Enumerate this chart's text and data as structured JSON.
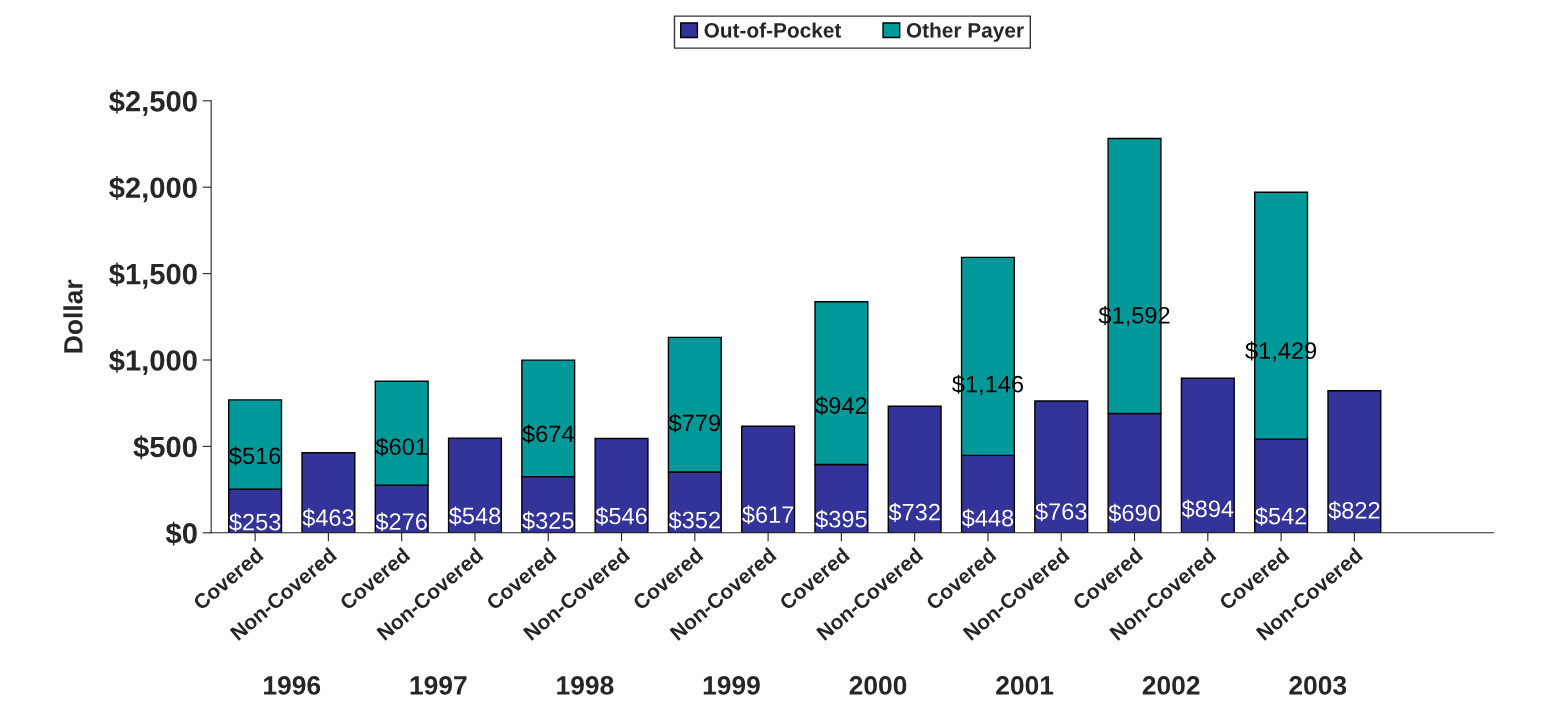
{
  "chart_data": {
    "type": "bar",
    "stacked": true,
    "ylabel": "Dollar",
    "categories": [
      "Covered",
      "Non-Covered",
      "Covered",
      "Non-Covered",
      "Covered",
      "Non-Covered",
      "Covered",
      "Non-Covered",
      "Covered",
      "Non-Covered",
      "Covered",
      "Non-Covered",
      "Covered",
      "Non-Covered",
      "Covered",
      "Non-Covered"
    ],
    "series": [
      {
        "name": "Out-of-Pocket",
        "color": "#333399",
        "values": [
          253,
          463,
          276,
          548,
          325,
          546,
          352,
          617,
          395,
          732,
          448,
          763,
          690,
          894,
          542,
          822
        ],
        "value_labels": [
          "$253",
          "$463",
          "$276",
          "$548",
          "$325",
          "$546",
          "$352",
          "$617",
          "$395",
          "$732",
          "$448",
          "$763",
          "$690",
          "$894",
          "$542",
          "$822"
        ]
      },
      {
        "name": "Other Payer",
        "color": "#009999",
        "values": [
          516,
          null,
          601,
          null,
          674,
          null,
          779,
          null,
          942,
          null,
          1146,
          null,
          1592,
          null,
          1429,
          null
        ],
        "value_labels": [
          "$516",
          null,
          "$601",
          null,
          "$674",
          null,
          "$779",
          null,
          "$942",
          null,
          "$1,146",
          null,
          "$1,592",
          null,
          "$1,429",
          null
        ]
      }
    ],
    "ylim": [
      0,
      2500
    ],
    "yticks": [
      {
        "value": 0,
        "label": "$0"
      },
      {
        "value": 500,
        "label": "$500"
      },
      {
        "value": 1000,
        "label": "$1,000"
      },
      {
        "value": 1500,
        "label": "$1,500"
      },
      {
        "value": 2000,
        "label": "$2,000"
      },
      {
        "value": 2500,
        "label": "$2,500"
      }
    ],
    "grid": false,
    "legend": "top",
    "annotations": [
      "1996",
      "1997",
      "1998",
      "1999",
      "2000",
      "2001",
      "2002",
      "2003"
    ]
  }
}
